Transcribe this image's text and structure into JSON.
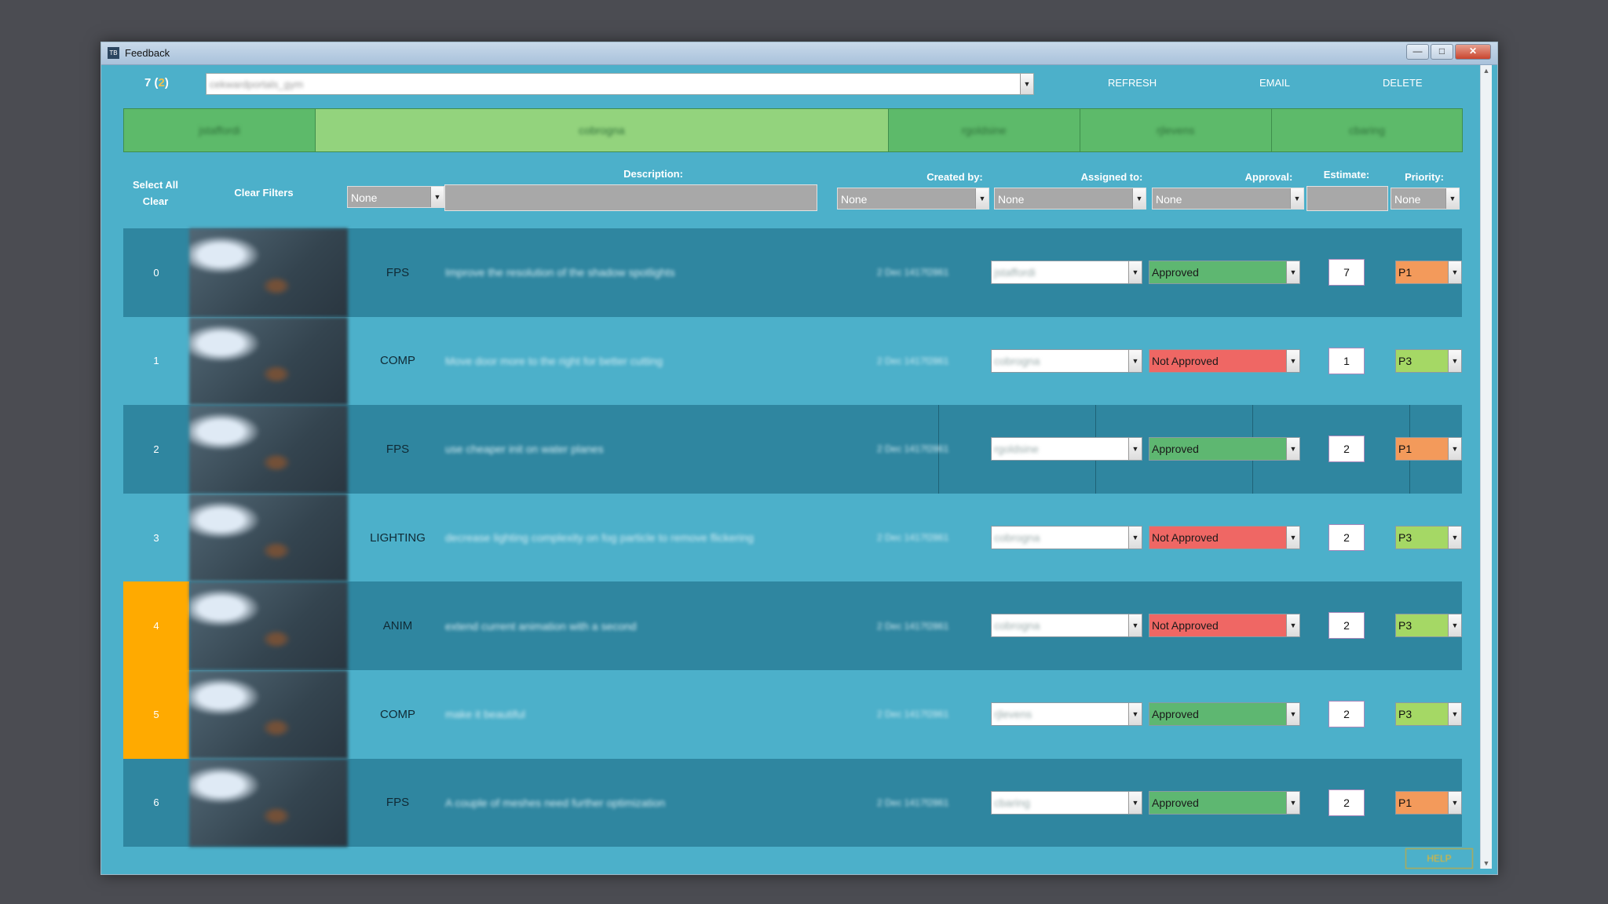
{
  "window": {
    "title": "Feedback",
    "controls": {
      "minimize": "—",
      "maximize": "□",
      "close": "✕"
    }
  },
  "toolbar": {
    "count": "7",
    "count_paren_open": "(",
    "count_highlight": "2",
    "count_paren_close": ")",
    "project_value": "cekwardportals_gym",
    "refresh_label": "REFRESH",
    "email_label": "EMAIL",
    "delete_label": "DELETE"
  },
  "user_tabs": [
    {
      "label": "jstaffordi",
      "active": false
    },
    {
      "label": "cobrogna",
      "active": true
    },
    {
      "label": "rgoldsine",
      "active": false
    },
    {
      "label": "rjlevens",
      "active": false
    },
    {
      "label": "cbaring",
      "active": false
    }
  ],
  "filters": {
    "select_all_label": "Select All",
    "clear_label": "Clear",
    "clear_filters_label": "Clear Filters",
    "description_label": "Description:",
    "created_by_label": "Created by:",
    "assigned_to_label": "Assigned to:",
    "approval_label": "Approval:",
    "estimate_label": "Estimate:",
    "priority_label": "Priority:",
    "dept_value": "None",
    "created_by_value": "None",
    "assigned_to_value": "None",
    "approval_value": "None",
    "priority_value": "None"
  },
  "rows": [
    {
      "index": "0",
      "dept": "FPS",
      "description": "Improve the resolution of the shadow spotlights",
      "created": "2 Dec 1417f2861",
      "assigned": "jstaffordi",
      "approval": "Approved",
      "approved": true,
      "estimate": "7",
      "priority": "P1"
    },
    {
      "index": "1",
      "dept": "COMP",
      "description": "Move door more to the right for better cutting",
      "created": "2 Dec 1417f2861",
      "assigned": "cobrogna",
      "approval": "Not Approved",
      "approved": false,
      "estimate": "1",
      "priority": "P3"
    },
    {
      "index": "2",
      "dept": "FPS",
      "description": "use cheaper init on water planes",
      "created": "2 Dec 1417f2861",
      "assigned": "rgoldsine",
      "approval": "Approved",
      "approved": true,
      "estimate": "2",
      "priority": "P1"
    },
    {
      "index": "3",
      "dept": "LIGHTING",
      "description": "decrease lighting complexity on fog particle to remove flickering",
      "created": "2 Dec 1417f2861",
      "assigned": "cobrogna",
      "approval": "Not Approved",
      "approved": false,
      "estimate": "2",
      "priority": "P3"
    },
    {
      "index": "4",
      "dept": "ANIM",
      "description": "extend current animation with a second",
      "created": "2 Dec 1417f2861",
      "assigned": "cobrogna",
      "approval": "Not Approved",
      "approved": false,
      "estimate": "2",
      "priority": "P3"
    },
    {
      "index": "5",
      "dept": "COMP",
      "description": "make it beautiful",
      "created": "2 Dec 1417f2861",
      "assigned": "rjlevens",
      "approval": "Approved",
      "approved": true,
      "estimate": "2",
      "priority": "P3"
    },
    {
      "index": "6",
      "dept": "FPS",
      "description": "A couple of meshes need further optimization",
      "created": "2 Dec 1417f2861",
      "assigned": "cbaring",
      "approval": "Approved",
      "approved": true,
      "estimate": "2",
      "priority": "P1"
    }
  ],
  "footer": {
    "help_label": "HELP"
  },
  "colors": {
    "background": "#4cb0ca",
    "row_dark": "#2f86a0",
    "highlight": "#ffaa00",
    "approved": "#5eb771",
    "not_approved": "#ef6764",
    "p1": "#f39a5b",
    "p3": "#a5d865"
  }
}
